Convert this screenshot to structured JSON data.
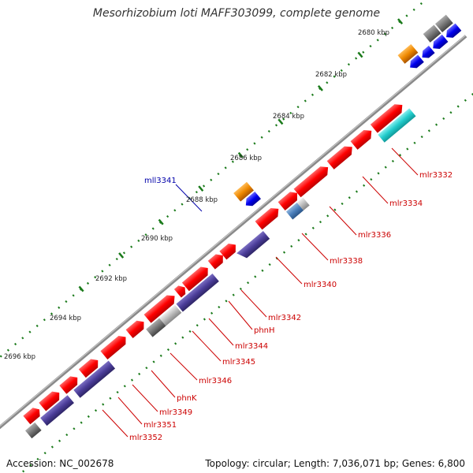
{
  "title": "Mesorhizobium loti MAFF303099, complete genome",
  "footer": {
    "accession": "Accession: NC_002678",
    "info": "Topology: circular; Length: 7,036,071 bp; Genes: 6,800"
  },
  "scale_labels": [
    "2680 kbp",
    "2682 kbp",
    "2684 kbp",
    "2686 kbp",
    "2688 kbp",
    "2690 kbp",
    "2692 kbp",
    "2694 kbp",
    "2696 kbp"
  ],
  "gene_labels_inner": [
    "mlr3332",
    "mlr3334",
    "mlr3336",
    "mlr3338",
    "mlr3340",
    "mlr3342",
    "phnH",
    "mlr3344",
    "mlr3345",
    "mlr3346",
    "phnK",
    "mlr3349",
    "mlr3351",
    "mlr3352"
  ],
  "gene_labels_outer": [
    "mll3341"
  ],
  "colors": {
    "forward_gene": "#ff0000",
    "reverse_gene": "#0000ee",
    "cds_purple": "#4b3d99",
    "teal": "#22cccc",
    "orange": "#ee8800",
    "gray": "#777777",
    "light_gray": "#bbbbbb",
    "steel_blue": "#4a7fbb",
    "label_red": "#cc0000",
    "label_blue": "#0000aa",
    "backbone": "#888888",
    "tick_green": "#1a7a1a"
  }
}
